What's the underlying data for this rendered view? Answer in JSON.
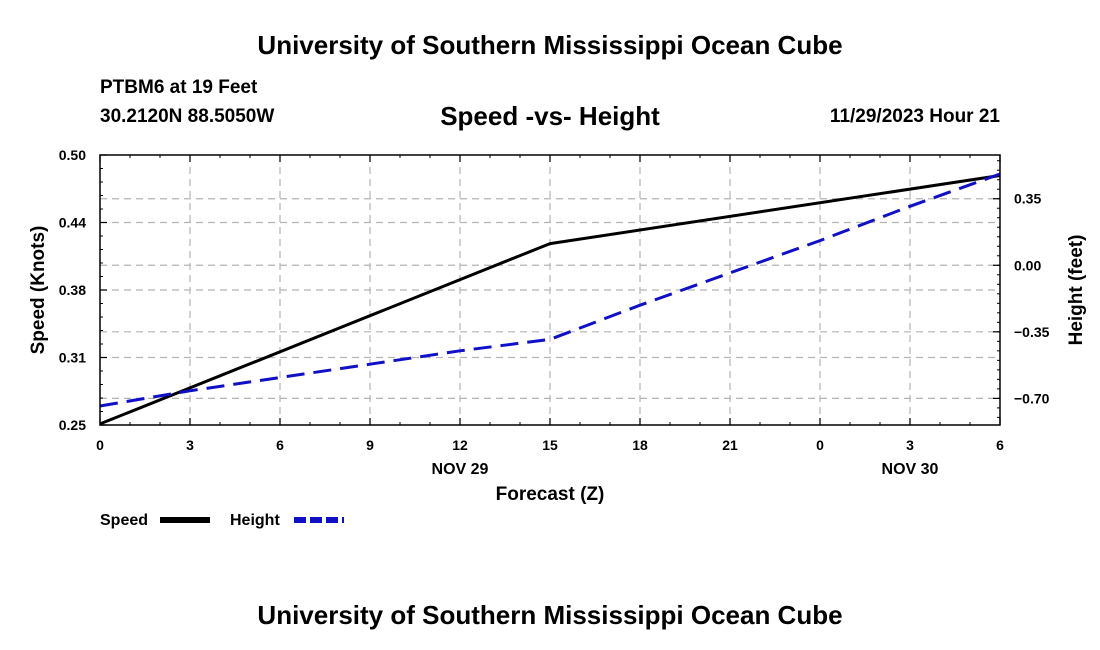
{
  "header": {
    "title_top": "University of Southern Mississippi Ocean Cube",
    "title_bottom": "University of Southern Mississippi Ocean Cube",
    "station": "PTBM6 at 19 Feet",
    "coords": "30.2120N  88.5050W",
    "timestamp": "11/29/2023 Hour 21"
  },
  "chart_data": {
    "type": "line",
    "title": "Speed -vs- Height",
    "xlabel": "Forecast (Z)",
    "ylabel_left": "Speed (Knots)",
    "ylabel_right": "Height (feet)",
    "x": [
      0,
      3,
      6,
      9,
      12,
      15,
      18,
      21,
      24,
      27,
      30
    ],
    "x_tick_labels": [
      "0",
      "3",
      "6",
      "9",
      "12",
      "15",
      "18",
      "21",
      "0",
      "3",
      "6"
    ],
    "date_labels": [
      {
        "x": 12,
        "label": "NOV 29"
      },
      {
        "x": 27,
        "label": "NOV 30"
      }
    ],
    "xlim": [
      0,
      30
    ],
    "y_left": {
      "lim": [
        0.25,
        0.5
      ],
      "ticks": [
        0.25,
        0.3125,
        0.375,
        0.4375,
        0.5
      ],
      "tick_labels": [
        "0.25",
        "0.31",
        "0.38",
        "0.44",
        "0.50"
      ]
    },
    "y_right": {
      "lim": [
        -0.84,
        0.58
      ],
      "ticks": [
        -0.7,
        -0.35,
        0.0,
        0.35
      ],
      "tick_labels": [
        "−0.70",
        "−0.35",
        "0.00",
        "0.35"
      ]
    },
    "grid": true,
    "series": [
      {
        "name": "Speed",
        "axis": "left",
        "color": "#000000",
        "style": "solid",
        "x": [
          0,
          15,
          30
        ],
        "values": [
          0.251,
          0.418,
          0.481
        ]
      },
      {
        "name": "Height",
        "axis": "right",
        "color": "#1010c8",
        "style": "dashed",
        "x": [
          0,
          3,
          6,
          9,
          12,
          15,
          18,
          21,
          24,
          27,
          30
        ],
        "values": [
          -0.74,
          -0.66,
          -0.59,
          -0.52,
          -0.45,
          -0.39,
          -0.21,
          -0.04,
          0.13,
          0.31,
          0.48
        ]
      }
    ],
    "legend": [
      {
        "label": "Speed",
        "color": "#000000",
        "style": "solid"
      },
      {
        "label": "Height",
        "color": "#1010c8",
        "style": "dashed"
      }
    ]
  }
}
